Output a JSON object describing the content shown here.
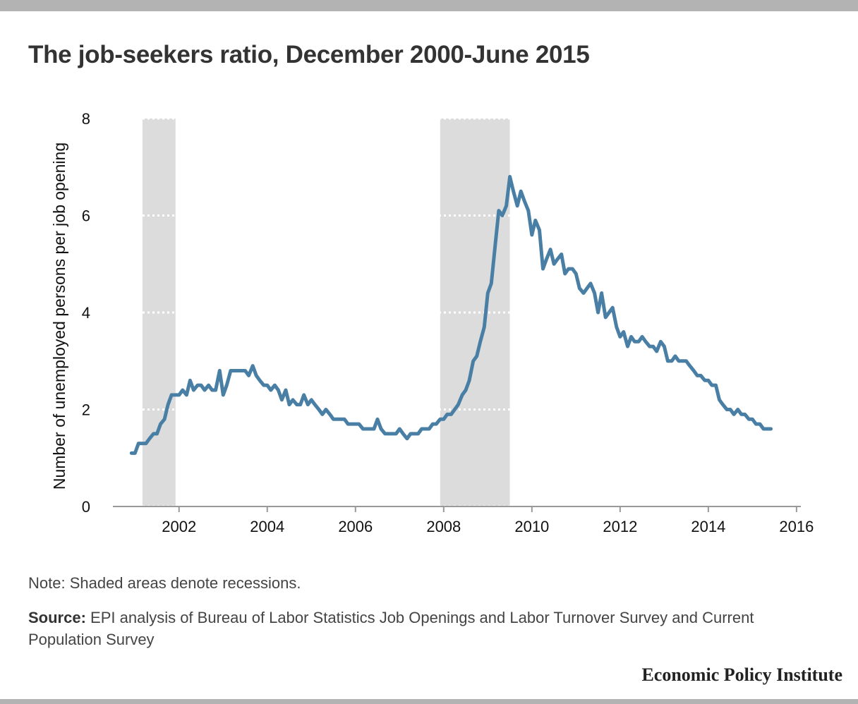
{
  "title": "The job-seekers ratio, December 2000-June 2015",
  "note": "Note: Shaded areas denote recessions.",
  "source": {
    "label": "Source:",
    "text": " EPI analysis of Bureau of Labor Statistics Job Openings and Labor Turnover Survey and Current Population Survey"
  },
  "brand": "Economic Policy Institute",
  "colors": {
    "line": "#4a7fa5",
    "recession_shade": "#dcdcdc",
    "gridline": "#ffffff",
    "axis": "#999999",
    "title": "#333333",
    "bars": "#b3b3b3"
  },
  "chart_data": {
    "type": "line",
    "title": "The job-seekers ratio, December 2000-June 2015",
    "xlabel": "",
    "ylabel": "Number of unemployed persons per job opening",
    "xlim": [
      2000.5,
      2016.05
    ],
    "ylim": [
      0,
      8
    ],
    "xticks": [
      2002,
      2004,
      2006,
      2008,
      2010,
      2012,
      2014,
      2016
    ],
    "yticks": [
      0,
      2,
      4,
      6,
      8
    ],
    "grid": "dotted horizontal lines visible only inside recession shading",
    "legend": "none",
    "recessions": [
      {
        "start": 2001.17,
        "end": 2001.92
      },
      {
        "start": 2007.92,
        "end": 2009.5
      }
    ],
    "series": [
      {
        "x": [
          2000.92,
          2001.0,
          2001.08,
          2001.17,
          2001.25,
          2001.33,
          2001.42,
          2001.5,
          2001.58,
          2001.67,
          2001.75,
          2001.83,
          2001.92,
          2002.0,
          2002.08,
          2002.17,
          2002.25,
          2002.33,
          2002.42,
          2002.5,
          2002.58,
          2002.67,
          2002.75,
          2002.83,
          2002.92,
          2003.0,
          2003.08,
          2003.17,
          2003.25,
          2003.33,
          2003.42,
          2003.5,
          2003.58,
          2003.67,
          2003.75,
          2003.83,
          2003.92,
          2004.0,
          2004.08,
          2004.17,
          2004.25,
          2004.33,
          2004.42,
          2004.5,
          2004.58,
          2004.67,
          2004.75,
          2004.83,
          2004.92,
          2005.0,
          2005.08,
          2005.17,
          2005.25,
          2005.33,
          2005.42,
          2005.5,
          2005.58,
          2005.67,
          2005.75,
          2005.83,
          2005.92,
          2006.0,
          2006.08,
          2006.17,
          2006.25,
          2006.33,
          2006.42,
          2006.5,
          2006.58,
          2006.67,
          2006.75,
          2006.83,
          2006.92,
          2007.0,
          2007.08,
          2007.17,
          2007.25,
          2007.33,
          2007.42,
          2007.5,
          2007.58,
          2007.67,
          2007.75,
          2007.83,
          2007.92,
          2008.0,
          2008.08,
          2008.17,
          2008.25,
          2008.33,
          2008.42,
          2008.5,
          2008.58,
          2008.67,
          2008.75,
          2008.83,
          2008.92,
          2009.0,
          2009.08,
          2009.17,
          2009.25,
          2009.33,
          2009.42,
          2009.5,
          2009.58,
          2009.67,
          2009.75,
          2009.83,
          2009.92,
          2010.0,
          2010.08,
          2010.17,
          2010.25,
          2010.33,
          2010.42,
          2010.5,
          2010.58,
          2010.67,
          2010.75,
          2010.83,
          2010.92,
          2011.0,
          2011.08,
          2011.17,
          2011.25,
          2011.33,
          2011.42,
          2011.5,
          2011.58,
          2011.67,
          2011.75,
          2011.83,
          2011.92,
          2012.0,
          2012.08,
          2012.17,
          2012.25,
          2012.33,
          2012.42,
          2012.5,
          2012.58,
          2012.67,
          2012.75,
          2012.83,
          2012.92,
          2013.0,
          2013.08,
          2013.17,
          2013.25,
          2013.33,
          2013.42,
          2013.5,
          2013.58,
          2013.67,
          2013.75,
          2013.83,
          2013.92,
          2014.0,
          2014.08,
          2014.17,
          2014.25,
          2014.33,
          2014.42,
          2014.5,
          2014.58,
          2014.67,
          2014.75,
          2014.83,
          2014.92,
          2015.0,
          2015.08,
          2015.17,
          2015.25,
          2015.33,
          2015.42
        ],
        "values": [
          1.1,
          1.1,
          1.3,
          1.3,
          1.3,
          1.4,
          1.5,
          1.5,
          1.7,
          1.8,
          2.1,
          2.3,
          2.3,
          2.3,
          2.4,
          2.3,
          2.6,
          2.4,
          2.5,
          2.5,
          2.4,
          2.5,
          2.4,
          2.4,
          2.8,
          2.3,
          2.5,
          2.8,
          2.8,
          2.8,
          2.8,
          2.8,
          2.7,
          2.9,
          2.7,
          2.6,
          2.5,
          2.5,
          2.4,
          2.5,
          2.4,
          2.2,
          2.4,
          2.1,
          2.2,
          2.1,
          2.1,
          2.3,
          2.1,
          2.2,
          2.1,
          2.0,
          1.9,
          2.0,
          1.9,
          1.8,
          1.8,
          1.8,
          1.8,
          1.7,
          1.7,
          1.7,
          1.7,
          1.6,
          1.6,
          1.6,
          1.6,
          1.8,
          1.6,
          1.5,
          1.5,
          1.5,
          1.5,
          1.6,
          1.5,
          1.4,
          1.5,
          1.5,
          1.5,
          1.6,
          1.6,
          1.6,
          1.7,
          1.7,
          1.8,
          1.8,
          1.9,
          1.9,
          2.0,
          2.1,
          2.3,
          2.4,
          2.6,
          3.0,
          3.1,
          3.4,
          3.7,
          4.4,
          4.6,
          5.4,
          6.1,
          6.0,
          6.2,
          6.8,
          6.5,
          6.2,
          6.5,
          6.3,
          6.1,
          5.6,
          5.9,
          5.7,
          4.9,
          5.1,
          5.3,
          5.0,
          5.1,
          5.2,
          4.8,
          4.9,
          4.9,
          4.8,
          4.5,
          4.4,
          4.5,
          4.6,
          4.4,
          4.0,
          4.4,
          3.9,
          4.0,
          4.1,
          3.7,
          3.5,
          3.6,
          3.3,
          3.5,
          3.4,
          3.4,
          3.5,
          3.4,
          3.3,
          3.3,
          3.2,
          3.4,
          3.3,
          3.0,
          3.0,
          3.1,
          3.0,
          3.0,
          3.0,
          2.9,
          2.8,
          2.7,
          2.7,
          2.6,
          2.6,
          2.5,
          2.5,
          2.2,
          2.1,
          2.0,
          2.0,
          1.9,
          2.0,
          1.9,
          1.9,
          1.8,
          1.8,
          1.7,
          1.7,
          1.6,
          1.6,
          1.6
        ]
      }
    ]
  }
}
